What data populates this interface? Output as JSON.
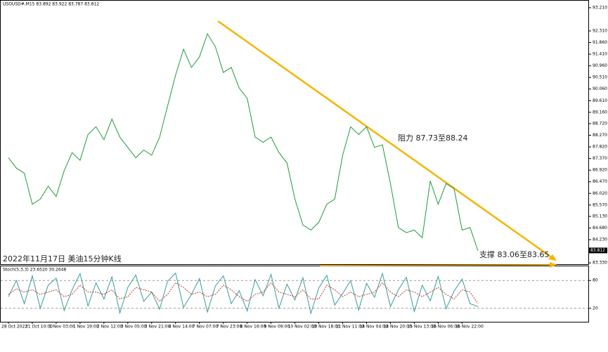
{
  "chart_data": [
    {
      "type": "line",
      "title": "USOUSD#,M15  83.892 83.922 83.787 83.812",
      "categories": [
        "28 Oct 2022",
        null,
        null,
        "31 Oct 10:00",
        null,
        null,
        "1 Nov 03:00",
        null,
        null,
        "1 Nov 19:00",
        null,
        null,
        "2 Nov 12:00",
        null,
        null,
        "3 Nov 05:00",
        null,
        null,
        "3 Nov 21:00",
        null,
        null,
        "4 Nov 14:00",
        null,
        null,
        "7 Nov 07:00",
        null,
        null,
        "7 Nov 23:00",
        null,
        null,
        "8 Nov 16:00",
        null,
        null,
        "9 Nov 09:00",
        null,
        null,
        "10 Nov 02:00",
        null,
        null,
        "10 Nov 18:00",
        null,
        null,
        "11 Nov 11:00",
        null,
        null,
        "14 Nov 04:00",
        null,
        null,
        "14 Nov 20:00",
        null,
        null,
        "15 Nov 13:00",
        null,
        null,
        "16 Nov 06:00",
        null,
        null,
        "16 Nov 22:00",
        null,
        null
      ],
      "values": [
        87.4,
        87.0,
        86.8,
        85.6,
        85.8,
        86.3,
        85.9,
        86.9,
        87.6,
        87.3,
        88.3,
        88.6,
        88.1,
        88.9,
        88.2,
        87.8,
        87.4,
        87.7,
        87.5,
        88.2,
        89.4,
        90.6,
        91.6,
        90.9,
        91.3,
        92.2,
        91.7,
        90.7,
        90.9,
        90.1,
        89.7,
        88.2,
        88.0,
        88.2,
        87.6,
        87.2,
        85.8,
        84.8,
        84.6,
        84.9,
        85.6,
        85.8,
        87.5,
        88.6,
        88.3,
        88.6,
        87.8,
        87.9,
        86.4,
        84.7,
        84.5,
        84.6,
        84.3,
        86.5,
        85.6,
        86.4,
        86.2,
        84.6,
        84.7,
        83.8
      ],
      "color": "#1f9a3a",
      "ylim": [
        83.28,
        93.48
      ],
      "yticks": [
        {
          "value": 93.21,
          "label": "93.210"
        },
        {
          "value": 92.31,
          "label": "92.310"
        },
        {
          "value": 91.86,
          "label": "91.860"
        },
        {
          "value": 91.41,
          "label": "91.410"
        },
        {
          "value": 90.96,
          "label": "90.960"
        },
        {
          "value": 90.51,
          "label": "90.510"
        },
        {
          "value": 90.06,
          "label": "90.060"
        },
        {
          "value": 89.61,
          "label": "89.610"
        },
        {
          "value": 89.16,
          "label": "89.160"
        },
        {
          "value": 88.72,
          "label": "88.720"
        },
        {
          "value": 88.27,
          "label": "88.270"
        },
        {
          "value": 87.82,
          "label": "87.820"
        },
        {
          "value": 87.37,
          "label": "87.370"
        },
        {
          "value": 86.92,
          "label": "86.920"
        },
        {
          "value": 86.47,
          "label": "86.470"
        },
        {
          "value": 86.02,
          "label": "86.020"
        },
        {
          "value": 85.57,
          "label": "85.570"
        },
        {
          "value": 85.13,
          "label": "85.130"
        },
        {
          "value": 84.68,
          "label": "84.680"
        },
        {
          "value": 84.23,
          "label": "84.230"
        },
        {
          "value": 83.33,
          "label": "83.330"
        }
      ],
      "last_price": 83.812,
      "annotations": [
        "阻力 87.73至88.24",
        "支撑 83.06至83.65",
        "2022年11月17日 美油15分钟K线"
      ]
    },
    {
      "type": "line",
      "title": "Stoch(5,3,3) 23.6520 30.2648",
      "series": [
        {
          "color": "#3a9a9a",
          "values": [
            45,
            80,
            30,
            90,
            20,
            70,
            85,
            15,
            60,
            95,
            25,
            75,
            40,
            88,
            10,
            65,
            92,
            35,
            55,
            18,
            78,
            96,
            22,
            50,
            84,
            12,
            68,
            90,
            30,
            58,
            14,
            82,
            47,
            93,
            20,
            72,
            38,
            86,
            9,
            64,
            91,
            27,
            52,
            80,
            16,
            74,
            44,
            95,
            24,
            60,
            87,
            13,
            70,
            36,
            89,
            19,
            57,
            83,
            30,
            24
          ]
        },
        {
          "color": "#c0392b",
          "values": [
            50,
            62,
            55,
            60,
            50,
            55,
            60,
            45,
            50,
            70,
            55,
            55,
            50,
            60,
            40,
            45,
            65,
            60,
            55,
            35,
            50,
            75,
            65,
            50,
            55,
            45,
            50,
            70,
            60,
            45,
            35,
            50,
            55,
            75,
            55,
            50,
            45,
            60,
            40,
            40,
            70,
            60,
            45,
            55,
            45,
            50,
            55,
            75,
            55,
            45,
            60,
            55,
            45,
            55,
            65,
            50,
            40,
            60,
            55,
            30
          ]
        }
      ],
      "ylim": [
        0,
        100
      ],
      "yticks": [
        80,
        20
      ]
    }
  ]
}
